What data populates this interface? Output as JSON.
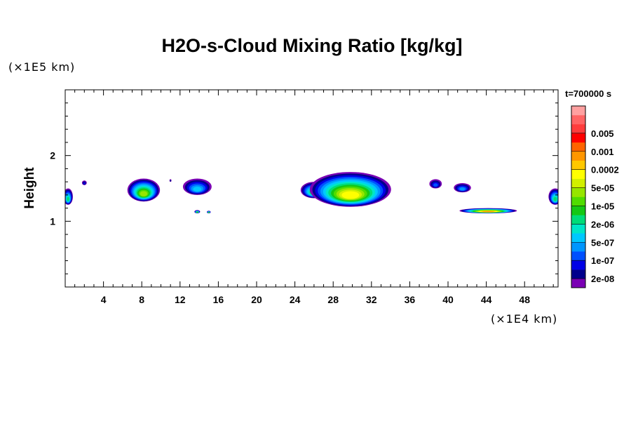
{
  "chart_data": {
    "type": "heatmap",
    "title": "H2O-s-Cloud Mixing Ratio [kg/kg]",
    "ylabel": "Height",
    "y_unit": "(×1E5 km)",
    "x_unit": "(×1E4 km)",
    "time_label": "t=700000 s",
    "xlim": [
      0,
      51.5
    ],
    "ylim": [
      0,
      3
    ],
    "x_ticks": [
      4,
      8,
      12,
      16,
      20,
      24,
      28,
      32,
      36,
      40,
      44,
      48
    ],
    "x_tick_labels": [
      "4",
      "8",
      "12",
      "16",
      "20",
      "24",
      "28",
      "32",
      "36",
      "40",
      "44",
      "48"
    ],
    "y_ticks": [
      1,
      2
    ],
    "y_tick_labels": [
      "1",
      "2"
    ],
    "colorbar": {
      "colors": [
        "#7a00b4",
        "#00008c",
        "#0000e6",
        "#0050ff",
        "#0096ff",
        "#00c8ff",
        "#00e6c8",
        "#00dc78",
        "#14c814",
        "#50dc00",
        "#96e600",
        "#d2f000",
        "#ffff00",
        "#ffc800",
        "#ff9600",
        "#ff6400",
        "#ff0000",
        "#ff3c3c",
        "#ff6464",
        "#ffa0a0"
      ],
      "labels": [
        "2e-08",
        "1e-07",
        "5e-07",
        "2e-06",
        "1e-05",
        "5e-05",
        "0.0002",
        "0.001",
        "0.005"
      ]
    },
    "cloud_features": [
      {
        "x_center": 0.3,
        "width": 1.0,
        "height_top": 1.5,
        "height_bottom": 1.25,
        "max_level": 7
      },
      {
        "x_center": 2.0,
        "width": 0.5,
        "height_top": 1.62,
        "height_bottom": 1.55,
        "max_level": 2
      },
      {
        "x_center": 8.2,
        "width": 3.4,
        "height_top": 1.65,
        "height_bottom": 1.3,
        "max_level": 10
      },
      {
        "x_center": 11.0,
        "width": 0.2,
        "height_top": 1.64,
        "height_bottom": 1.6,
        "max_level": 1
      },
      {
        "x_center": 13.8,
        "width": 3.0,
        "height_top": 1.65,
        "height_bottom": 1.4,
        "max_level": 5
      },
      {
        "x_center": 13.8,
        "width": 0.6,
        "height_top": 1.17,
        "height_bottom": 1.12,
        "max_level": 9
      },
      {
        "x_center": 15.0,
        "width": 0.4,
        "height_top": 1.16,
        "height_bottom": 1.12,
        "max_level": 9
      },
      {
        "x_center": 26.0,
        "width": 2.8,
        "height_top": 1.6,
        "height_bottom": 1.35,
        "max_level": 8
      },
      {
        "x_center": 29.8,
        "width": 8.5,
        "height_top": 1.75,
        "height_bottom": 1.22,
        "max_level": 12
      },
      {
        "x_center": 38.7,
        "width": 1.3,
        "height_top": 1.64,
        "height_bottom": 1.5,
        "max_level": 3
      },
      {
        "x_center": 41.5,
        "width": 1.8,
        "height_top": 1.58,
        "height_bottom": 1.44,
        "max_level": 4
      },
      {
        "x_center": 44.2,
        "width": 6.0,
        "height_top": 1.2,
        "height_bottom": 1.12,
        "max_level": 14
      },
      {
        "x_center": 51.2,
        "width": 1.4,
        "height_top": 1.5,
        "height_bottom": 1.25,
        "max_level": 7
      }
    ]
  }
}
